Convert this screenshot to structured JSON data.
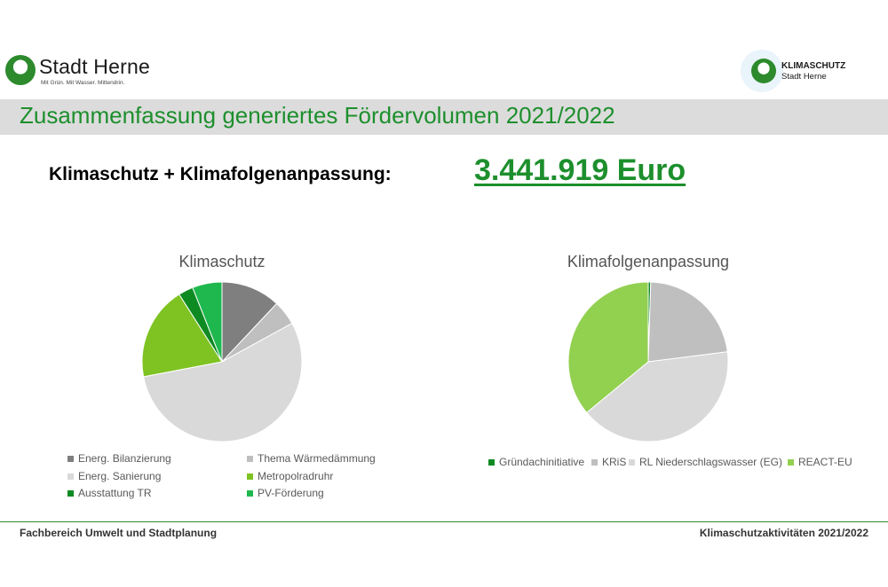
{
  "header": {
    "logo_left": {
      "name": "Stadt Herne",
      "slogan": "Mit Grün. Mit Wasser. Mittendrin."
    },
    "logo_right": {
      "line1": "KLIMASCHUTZ",
      "line2": "Stadt Herne"
    }
  },
  "title": "Zusammenfassung generiertes Fördervolumen 2021/2022",
  "summary": {
    "label": "Klimaschutz + Klimafolgenanpassung:",
    "value": "3.441.919 Euro"
  },
  "colors": {
    "accent_green": "#1d8f2d",
    "title_band": "#dcdcdc"
  },
  "chart_data": [
    {
      "type": "pie",
      "title": "Klimaschutz",
      "series": [
        {
          "name": "Energ. Bilanzierung",
          "value": 12,
          "color": "#7f7f7f"
        },
        {
          "name": "Thema Wärmedämmung",
          "value": 5,
          "color": "#bfbfbf"
        },
        {
          "name": "Energ. Sanierung",
          "value": 55,
          "color": "#d9d9d9"
        },
        {
          "name": "Metropolradruhr",
          "value": 19,
          "color": "#7ec322"
        },
        {
          "name": "Ausstattung TR",
          "value": 3,
          "color": "#0e8a22"
        },
        {
          "name": "PV-Förderung",
          "value": 6,
          "color": "#1fb84e"
        }
      ],
      "legend": "bottom"
    },
    {
      "type": "pie",
      "title": "Klimafolgenanpassung",
      "series": [
        {
          "name": "Gründachinitiative",
          "value": 0.5,
          "color": "#0e8a22"
        },
        {
          "name": "KRiS",
          "value": 22.5,
          "color": "#bfbfbf"
        },
        {
          "name": "RL Niederschlagswasser (EG)",
          "value": 41,
          "color": "#d9d9d9"
        },
        {
          "name": "REACT-EU",
          "value": 36,
          "color": "#92d050"
        }
      ],
      "legend": "bottom"
    }
  ],
  "footer": {
    "left": "Fachbereich Umwelt und Stadtplanung",
    "right": "Klimaschutzaktivitäten 2021/2022"
  }
}
